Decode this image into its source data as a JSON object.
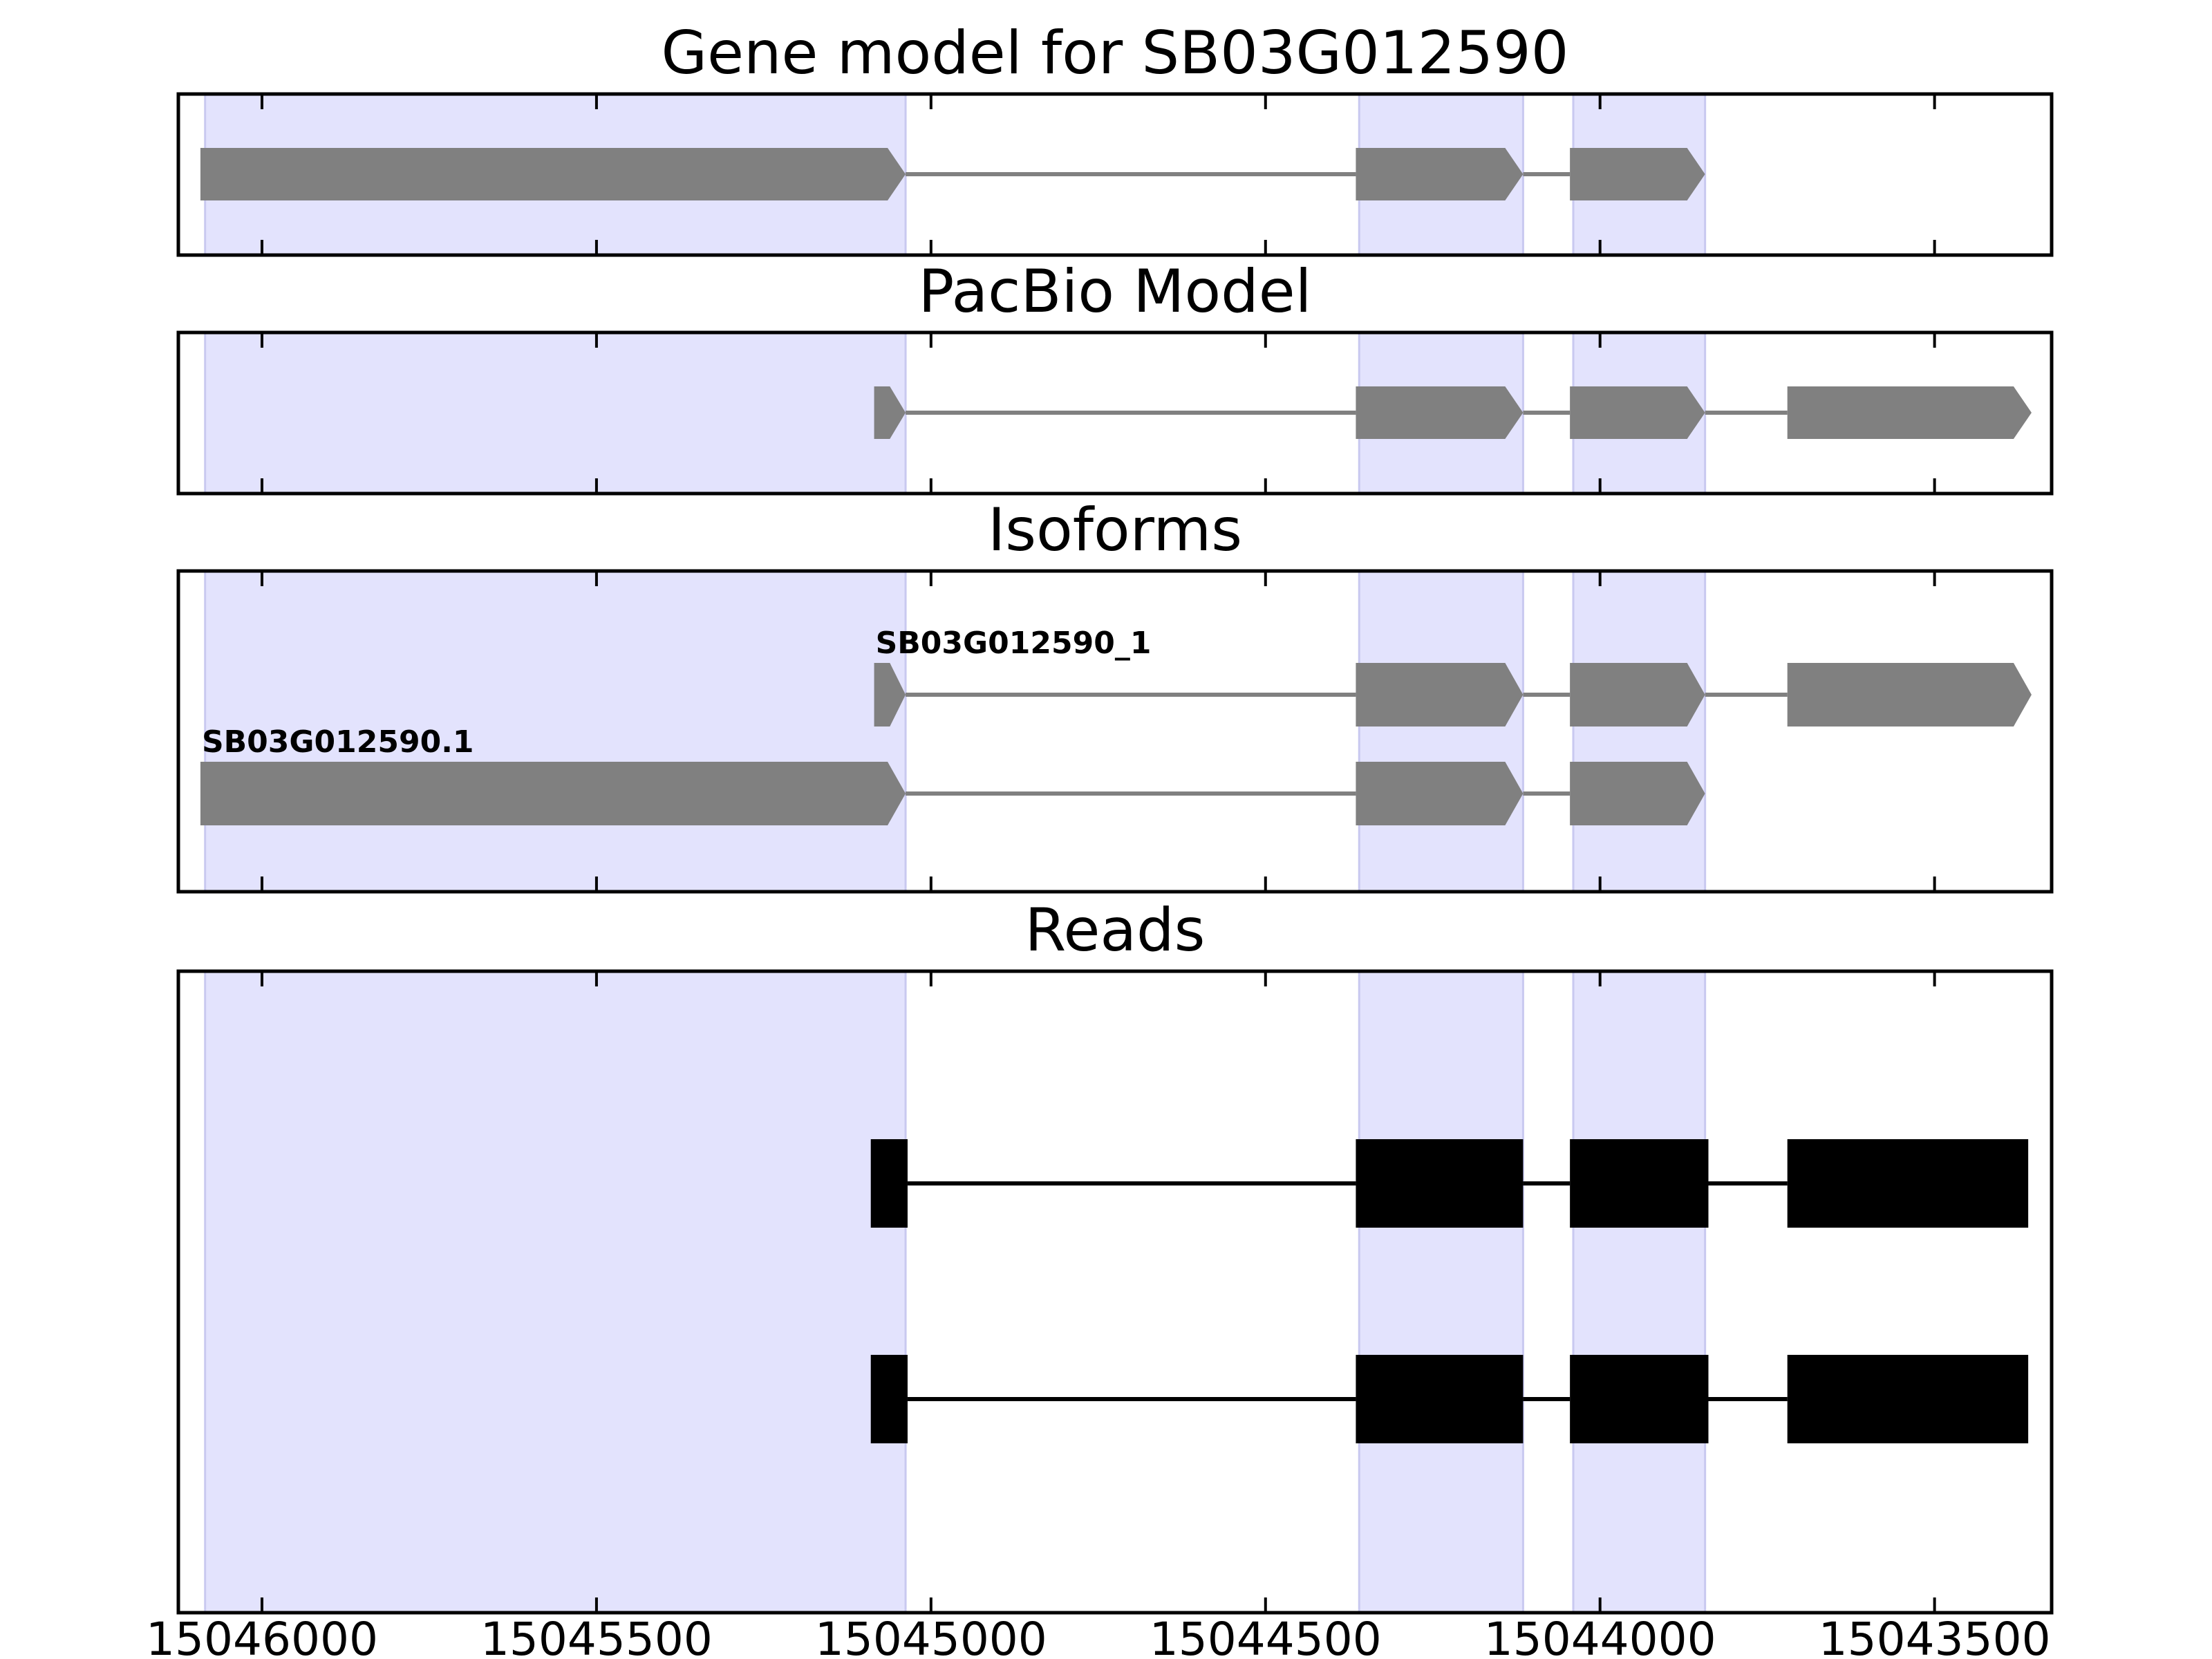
{
  "chart_data": {
    "type": "gene-structure",
    "x_axis": {
      "range": [
        15046125,
        15043325
      ],
      "ticks": [
        15046000,
        15045500,
        15045000,
        15044500,
        15044000,
        15043500
      ],
      "tick_labels": [
        "15046000",
        "15045500",
        "15045000",
        "15044500",
        "15044000",
        "15043500"
      ]
    },
    "highlight_regions": [
      [
        15046085,
        15045038
      ],
      [
        15044360,
        15044115
      ],
      [
        15044040,
        15043843
      ]
    ],
    "highlight_color": "#e3e3fd",
    "feature_color": "#808080",
    "read_color": "#000000",
    "panels": [
      {
        "title": "Gene model for SB03G012590",
        "tracks": [
          {
            "label": "",
            "exons": [
              [
                15046092,
                15045038
              ],
              [
                15044365,
                15044115
              ],
              [
                15044045,
                15043843
              ]
            ]
          }
        ]
      },
      {
        "title": "PacBio Model",
        "tracks": [
          {
            "label": "",
            "exons": [
              [
                15045085,
                15045038
              ],
              [
                15044365,
                15044115
              ],
              [
                15044045,
                15043843
              ],
              [
                15043720,
                15043355
              ]
            ]
          }
        ]
      },
      {
        "title": "Isoforms",
        "tracks": [
          {
            "label": "SB03G012590_1",
            "exons": [
              [
                15045085,
                15045038
              ],
              [
                15044365,
                15044115
              ],
              [
                15044045,
                15043843
              ],
              [
                15043720,
                15043355
              ]
            ]
          },
          {
            "label": "SB03G012590.1",
            "exons": [
              [
                15046092,
                15045038
              ],
              [
                15044365,
                15044115
              ],
              [
                15044045,
                15043843
              ]
            ]
          }
        ]
      },
      {
        "title": "Reads",
        "tracks": [
          {
            "label": "",
            "exons": [
              [
                15045090,
                15045035
              ],
              [
                15044365,
                15044115
              ],
              [
                15044045,
                15043838
              ],
              [
                15043720,
                15043360
              ]
            ]
          },
          {
            "label": "",
            "exons": [
              [
                15045090,
                15045035
              ],
              [
                15044365,
                15044115
              ],
              [
                15044045,
                15043838
              ],
              [
                15043720,
                15043360
              ]
            ]
          }
        ]
      }
    ]
  }
}
